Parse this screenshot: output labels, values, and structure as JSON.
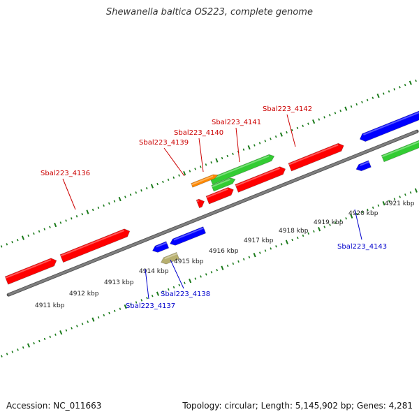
{
  "title": "Shewanella baltica OS223, complete genome",
  "accession": "Accession: NC_011663",
  "topology": "Topology: circular; Length: 5,145,902 bp; Genes: 4,281",
  "colors": {
    "backbone": "#808080",
    "ticks": "#1a7a1a",
    "forward_label": "#cc0000",
    "reverse_label": "#0000cc",
    "red_gene": "#ff0000",
    "green_gene": "#33cc33",
    "blue_gene": "#0000ff",
    "orange_gene": "#ff8800",
    "olive_gene": "#b8b070"
  },
  "kbp_labels": [
    "4911 kbp",
    "4912 kbp",
    "4913 kbp",
    "4914 kbp",
    "4915 kbp",
    "4916 kbp",
    "4917 kbp",
    "4918 kbp",
    "4919 kbp",
    "4920 kbp",
    "4921 kbp"
  ],
  "gene_labels": [
    {
      "text": "Sbal223_4136",
      "strand": "forward"
    },
    {
      "text": "Sbal223_4139",
      "strand": "forward"
    },
    {
      "text": "Sbal223_4140",
      "strand": "forward"
    },
    {
      "text": "Sbal223_4141",
      "strand": "forward"
    },
    {
      "text": "Sbal223_4142",
      "strand": "forward"
    },
    {
      "text": "Sbal223_4137",
      "strand": "reverse"
    },
    {
      "text": "Sbal223_4138",
      "strand": "reverse"
    },
    {
      "text": "Sbal223_4143",
      "strand": "reverse"
    }
  ]
}
